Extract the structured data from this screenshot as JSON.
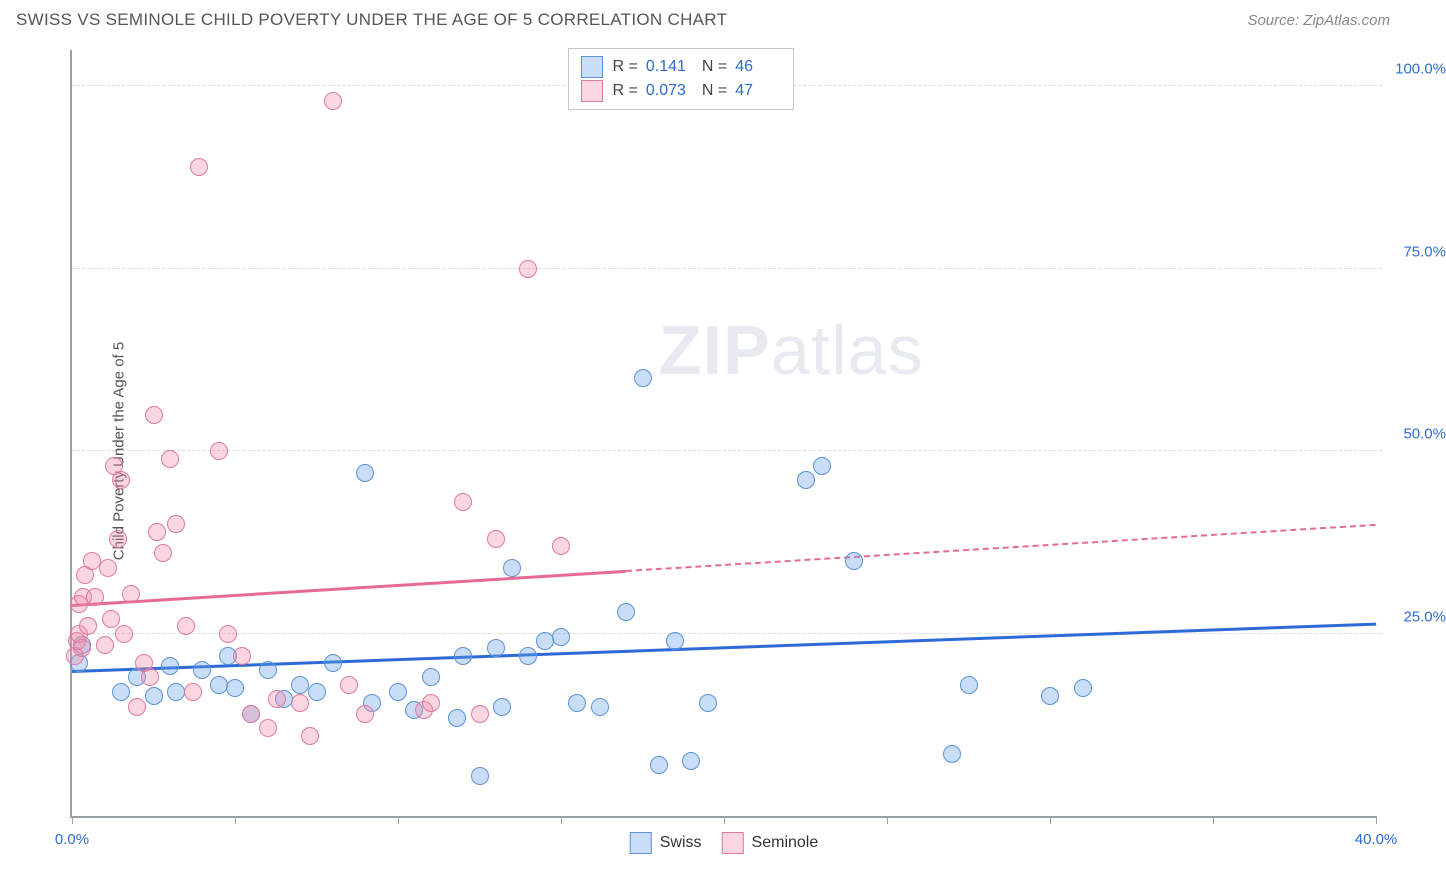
{
  "title": "SWISS VS SEMINOLE CHILD POVERTY UNDER THE AGE OF 5 CORRELATION CHART",
  "source": "Source: ZipAtlas.com",
  "yaxis_label": "Child Poverty Under the Age of 5",
  "watermark": {
    "zip": "ZIP",
    "rest": "atlas"
  },
  "chart": {
    "type": "scatter",
    "background_color": "#ffffff",
    "grid_color": "#dcdcdc",
    "axis_color": "#9aa0a6",
    "xlim": [
      0,
      40
    ],
    "ylim": [
      0,
      105
    ],
    "xtick_step": 5,
    "yticks": [
      25,
      50,
      75,
      100
    ],
    "xtick_labels": {
      "0": "0.0%",
      "40": "40.0%"
    },
    "ytick_labels": {
      "25": "25.0%",
      "50": "50.0%",
      "75": "75.0%",
      "100": "100.0%"
    },
    "label_color": "#2e6bd6",
    "label_fontsize": 15,
    "marker_radius": 9,
    "marker_stroke_width": 1.5,
    "series": [
      {
        "name": "Swiss",
        "fill": "rgba(100,160,230,0.35)",
        "stroke": "#5a94d8",
        "R": "0.141",
        "N": "46",
        "points": [
          [
            0.2,
            21
          ],
          [
            0.3,
            23.5
          ],
          [
            1.5,
            17
          ],
          [
            2,
            19
          ],
          [
            2.5,
            16.5
          ],
          [
            3,
            20.5
          ],
          [
            3.2,
            17
          ],
          [
            4,
            20
          ],
          [
            4.5,
            18
          ],
          [
            4.8,
            22
          ],
          [
            5,
            17.5
          ],
          [
            5.5,
            14
          ],
          [
            6,
            20
          ],
          [
            6.5,
            16
          ],
          [
            7,
            18
          ],
          [
            7.5,
            17
          ],
          [
            8,
            21
          ],
          [
            9,
            47
          ],
          [
            9.2,
            15.5
          ],
          [
            10,
            17
          ],
          [
            10.5,
            14.5
          ],
          [
            11,
            19
          ],
          [
            11.8,
            13.5
          ],
          [
            12,
            22
          ],
          [
            12.5,
            5.5
          ],
          [
            13,
            23
          ],
          [
            13.2,
            15
          ],
          [
            13.5,
            34
          ],
          [
            14,
            22
          ],
          [
            14.5,
            24
          ],
          [
            15,
            24.5
          ],
          [
            15.5,
            15.5
          ],
          [
            16.2,
            15
          ],
          [
            17,
            28
          ],
          [
            17.5,
            60
          ],
          [
            18,
            7
          ],
          [
            18.5,
            24
          ],
          [
            19,
            7.5
          ],
          [
            19.5,
            15.5
          ],
          [
            22.5,
            46
          ],
          [
            23,
            48
          ],
          [
            24,
            35
          ],
          [
            27,
            8.5
          ],
          [
            27.5,
            18
          ],
          [
            30,
            16.5
          ],
          [
            31,
            17.5
          ]
        ],
        "trend": {
          "y_at_x0": 20,
          "y_at_xmax": 26.5,
          "color": "#2e6bd6",
          "extends_full": true
        }
      },
      {
        "name": "Seminole",
        "fill": "rgba(240,140,165,0.35)",
        "stroke": "#e079a0",
        "R": "0.073",
        "N": "47",
        "points": [
          [
            0.1,
            22
          ],
          [
            0.15,
            24
          ],
          [
            0.2,
            25
          ],
          [
            0.2,
            29
          ],
          [
            0.3,
            23
          ],
          [
            0.35,
            30
          ],
          [
            0.4,
            33
          ],
          [
            0.5,
            26
          ],
          [
            0.6,
            35
          ],
          [
            0.7,
            30
          ],
          [
            1,
            23.5
          ],
          [
            1.1,
            34
          ],
          [
            1.2,
            27
          ],
          [
            1.3,
            48
          ],
          [
            1.4,
            38
          ],
          [
            1.5,
            46
          ],
          [
            1.6,
            25
          ],
          [
            1.8,
            30.5
          ],
          [
            2,
            15
          ],
          [
            2.2,
            21
          ],
          [
            2.4,
            19
          ],
          [
            2.5,
            55
          ],
          [
            2.6,
            39
          ],
          [
            2.8,
            36
          ],
          [
            3,
            49
          ],
          [
            3.2,
            40
          ],
          [
            3.5,
            26
          ],
          [
            3.7,
            17
          ],
          [
            3.9,
            89
          ],
          [
            4.5,
            50
          ],
          [
            4.8,
            25
          ],
          [
            5.2,
            22
          ],
          [
            5.5,
            14
          ],
          [
            6,
            12
          ],
          [
            6.3,
            16
          ],
          [
            7,
            15.5
          ],
          [
            7.3,
            11
          ],
          [
            8,
            98
          ],
          [
            8.5,
            18
          ],
          [
            9,
            14
          ],
          [
            10.8,
            14.5
          ],
          [
            11,
            15.5
          ],
          [
            12,
            43
          ],
          [
            12.5,
            14
          ],
          [
            13,
            38
          ],
          [
            14,
            75
          ],
          [
            15,
            37
          ]
        ],
        "trend": {
          "y_at_x0": 29,
          "y_at_xmax": 40,
          "color": "#e56b94",
          "solid_until_x": 17,
          "extends_full": true
        }
      }
    ]
  },
  "top_legend": {
    "rows": [
      {
        "swatch_fill": "rgba(100,160,230,0.35)",
        "swatch_stroke": "#5a94d8",
        "R": "0.141",
        "N": "46"
      },
      {
        "swatch_fill": "rgba(240,140,165,0.35)",
        "swatch_stroke": "#e079a0",
        "R": "0.073",
        "N": "47"
      }
    ],
    "R_label": "R  =",
    "N_label": "N  ="
  },
  "bottom_legend": {
    "items": [
      {
        "label": "Swiss",
        "fill": "rgba(100,160,230,0.35)",
        "stroke": "#5a94d8"
      },
      {
        "label": "Seminole",
        "fill": "rgba(240,140,165,0.35)",
        "stroke": "#e079a0"
      }
    ]
  }
}
